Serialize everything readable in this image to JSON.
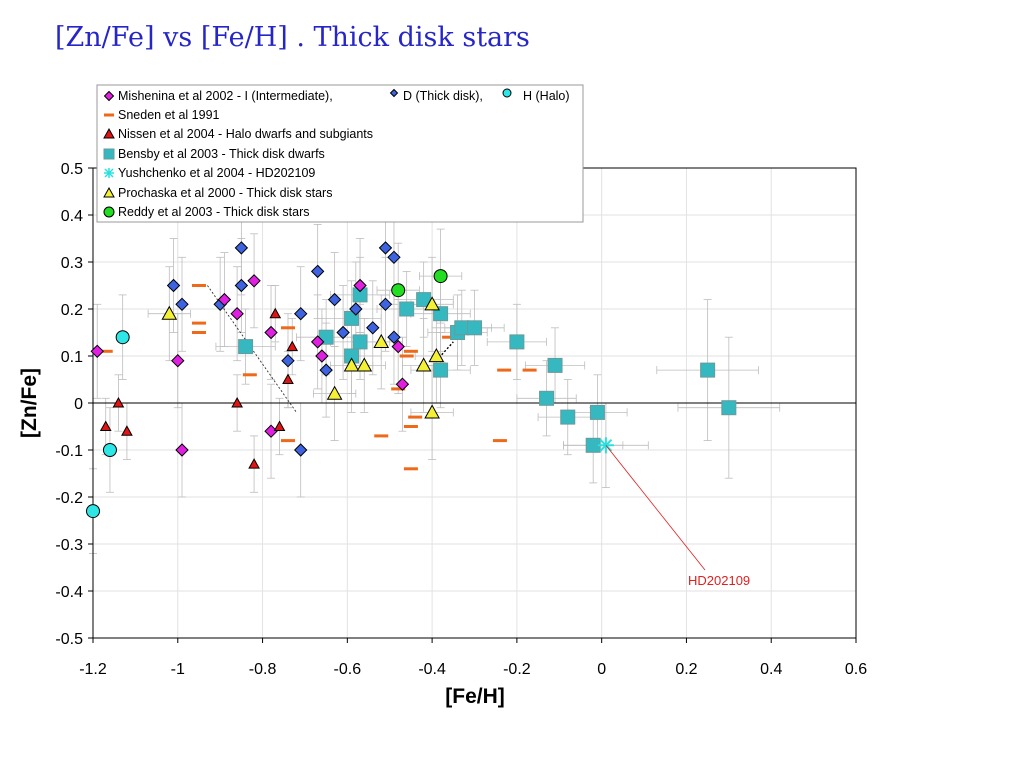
{
  "slide": {
    "title": "[Zn/Fe] vs [Fe/H] . Thick disk stars"
  },
  "colors": {
    "mishenina_I": "#e020e0",
    "mishenina_D": "#3d63e0",
    "mishenina_H": "#2ee6e6",
    "sneden": "#ee6a1a",
    "nissen": "#e01414",
    "bensby": "#35b8c0",
    "yushchenko": "#28e0e0",
    "prochaska": "#f4f035",
    "reddy": "#22dd22",
    "annotation": "#e02020"
  },
  "chart_data": {
    "type": "scatter",
    "xlabel": "[Fe/H]",
    "ylabel": "[Zn/Fe]",
    "xlim": [
      -1.2,
      0.6
    ],
    "ylim": [
      -0.5,
      0.5
    ],
    "xticks": [
      "-1.2",
      "-1",
      "-0.8",
      "-0.6",
      "-0.4",
      "-0.2",
      "0",
      "0.2",
      "0.4",
      "0.6"
    ],
    "yticks": [
      "0.5",
      "0.4",
      "0.3",
      "0.2",
      "0.1",
      "0",
      "-0.1",
      "-0.2",
      "-0.3",
      "-0.4",
      "-0.5"
    ],
    "grid": true,
    "legend_placement": "top-left",
    "legend": {
      "mishenina_prefix": "Mishenina et al 2002 -  I (Intermediate),",
      "mishenina_d": "D (Thick disk),",
      "mishenina_h": "H (Halo)",
      "sneden": "Sneden et al 1991",
      "nissen": "Nissen et al 2004 - Halo dwarfs and subgiants",
      "bensby": "Bensby et al 2003 - Thick disk dwarfs",
      "yushchenko": "Yushchenko et al 2004 - HD202109",
      "prochaska": "Prochaska et al 2000 - Thick disk stars",
      "reddy": "Reddy et al 2003 - Thick disk stars"
    },
    "annotation": {
      "text": "HD202109",
      "x": 0.01,
      "y": -0.09
    },
    "series": {
      "mishenina_I": [
        [
          -1.19,
          0.11
        ],
        [
          -1.0,
          0.09
        ],
        [
          -0.99,
          -0.1
        ],
        [
          -0.89,
          0.22
        ],
        [
          -0.86,
          0.19
        ],
        [
          -0.82,
          0.26
        ],
        [
          -0.78,
          0.15
        ],
        [
          -0.78,
          -0.06
        ],
        [
          -0.66,
          0.1
        ],
        [
          -0.57,
          0.25
        ],
        [
          -0.48,
          0.12
        ],
        [
          -0.47,
          0.04
        ],
        [
          -0.67,
          0.13
        ]
      ],
      "mishenina_D": [
        [
          -1.01,
          0.25
        ],
        [
          -0.99,
          0.21
        ],
        [
          -0.9,
          0.21
        ],
        [
          -0.85,
          0.33
        ],
        [
          -0.85,
          0.25
        ],
        [
          -0.74,
          0.09
        ],
        [
          -0.71,
          0.19
        ],
        [
          -0.71,
          -0.1
        ],
        [
          -0.67,
          0.28
        ],
        [
          -0.65,
          0.07
        ],
        [
          -0.63,
          0.22
        ],
        [
          -0.61,
          0.15
        ],
        [
          -0.58,
          0.2
        ],
        [
          -0.54,
          0.16
        ],
        [
          -0.51,
          0.33
        ],
        [
          -0.51,
          0.21
        ],
        [
          -0.49,
          0.31
        ],
        [
          -0.49,
          0.14
        ]
      ],
      "mishenina_H": [
        [
          -1.2,
          -0.23
        ],
        [
          -1.16,
          -0.1
        ],
        [
          -1.13,
          0.14
        ]
      ],
      "sneden_dashes": [
        [
          -1.17,
          0.11
        ],
        [
          -0.95,
          0.25
        ],
        [
          -0.95,
          0.17
        ],
        [
          -0.95,
          0.15
        ],
        [
          -0.83,
          0.06
        ],
        [
          -0.74,
          0.16
        ],
        [
          -0.74,
          -0.08
        ],
        [
          -0.52,
          -0.07
        ],
        [
          -0.48,
          0.03
        ],
        [
          -0.46,
          0.1
        ],
        [
          -0.45,
          0.11
        ],
        [
          -0.45,
          -0.05
        ],
        [
          -0.45,
          -0.14
        ],
        [
          -0.44,
          -0.03
        ],
        [
          -0.36,
          0.14
        ],
        [
          -0.24,
          -0.08
        ],
        [
          -0.23,
          0.07
        ],
        [
          -0.17,
          0.07
        ]
      ],
      "nissen": [
        [
          -1.17,
          -0.05
        ],
        [
          -1.14,
          0.0
        ],
        [
          -1.12,
          -0.06
        ],
        [
          -0.86,
          0.0
        ],
        [
          -0.82,
          -0.13
        ],
        [
          -0.77,
          0.19
        ],
        [
          -0.76,
          -0.05
        ],
        [
          -0.74,
          0.05
        ],
        [
          -0.73,
          0.12
        ]
      ],
      "bensby": [
        [
          -0.84,
          0.12
        ],
        [
          -0.65,
          0.14
        ],
        [
          -0.59,
          0.18
        ],
        [
          -0.59,
          0.1
        ],
        [
          -0.57,
          0.23
        ],
        [
          -0.57,
          0.13
        ],
        [
          -0.46,
          0.2
        ],
        [
          -0.42,
          0.22
        ],
        [
          -0.38,
          0.19
        ],
        [
          -0.38,
          0.07
        ],
        [
          -0.34,
          0.15
        ],
        [
          -0.33,
          0.16
        ],
        [
          -0.3,
          0.16
        ],
        [
          -0.2,
          0.13
        ],
        [
          -0.11,
          0.08
        ],
        [
          -0.13,
          0.01
        ],
        [
          -0.08,
          -0.03
        ],
        [
          -0.02,
          -0.09
        ],
        [
          -0.01,
          -0.02
        ],
        [
          0.25,
          0.07
        ],
        [
          0.3,
          -0.01
        ]
      ],
      "yushchenko": [
        [
          0.01,
          -0.09
        ]
      ],
      "prochaska": [
        [
          -1.02,
          0.19
        ],
        [
          -0.63,
          0.02
        ],
        [
          -0.59,
          0.08
        ],
        [
          -0.56,
          0.08
        ],
        [
          -0.52,
          0.13
        ],
        [
          -0.42,
          0.08
        ],
        [
          -0.4,
          0.21
        ],
        [
          -0.4,
          -0.02
        ],
        [
          -0.39,
          0.1
        ]
      ],
      "reddy": [
        [
          -0.48,
          0.24
        ],
        [
          -0.38,
          0.27
        ]
      ]
    }
  }
}
